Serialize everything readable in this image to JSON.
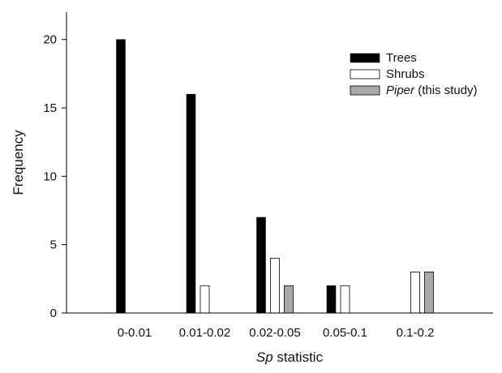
{
  "chart_data": {
    "type": "bar",
    "xlabel_italic": "Sp",
    "xlabel_rest": " statistic",
    "ylabel": "Frequency",
    "ylim": [
      0,
      22
    ],
    "yticks": [
      0,
      5,
      10,
      15,
      20
    ],
    "categories": [
      "0-0.01",
      "0.01-0.02",
      "0.02-0.05",
      "0.05-0.1",
      "0.1-0.2"
    ],
    "series": [
      {
        "name": "Trees",
        "legend_italic": "",
        "legend_rest": "Trees",
        "fill": "#000000",
        "values": [
          20,
          16,
          7,
          2,
          0
        ]
      },
      {
        "name": "Shrubs",
        "legend_italic": "",
        "legend_rest": "Shrubs",
        "fill": "#ffffff",
        "values": [
          0,
          2,
          4,
          2,
          3
        ]
      },
      {
        "name": "Piper (this study)",
        "legend_italic": "Piper",
        "legend_rest": " (this study)",
        "fill": "#a9a9a9",
        "values": [
          0,
          0,
          2,
          0,
          3
        ]
      }
    ],
    "legend_position": "top-right",
    "grid": false
  }
}
